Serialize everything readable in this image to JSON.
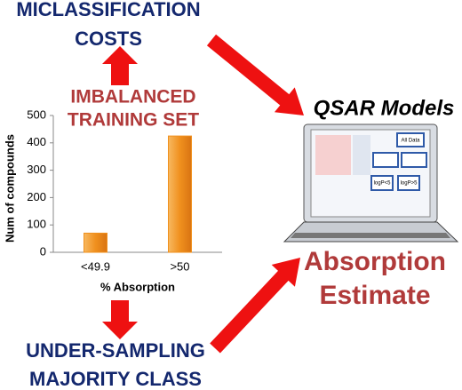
{
  "top_label": [
    "MICLASSIFICATION",
    "COSTS"
  ],
  "imbalanced_label": [
    "IMBALANCED",
    "TRAINING SET"
  ],
  "bottom_label": [
    "UNDER-SAMPLING",
    "MAJORITY CLASS"
  ],
  "models_label": "QSAR Models",
  "screen_boxes": [
    "All Data",
    "logP<5",
    "logP>5"
  ],
  "result_label": [
    "Absorption",
    "Estimate"
  ],
  "chart_data": {
    "type": "bar",
    "categories": [
      "<49.9",
      ">50"
    ],
    "values": [
      70,
      425
    ],
    "x_label": "% Absorption",
    "y_label": "Num of compounds",
    "color": "#f0901e",
    "ylim": [
      0,
      500
    ],
    "yticks": [
      0,
      100,
      200,
      300,
      400,
      500
    ]
  }
}
